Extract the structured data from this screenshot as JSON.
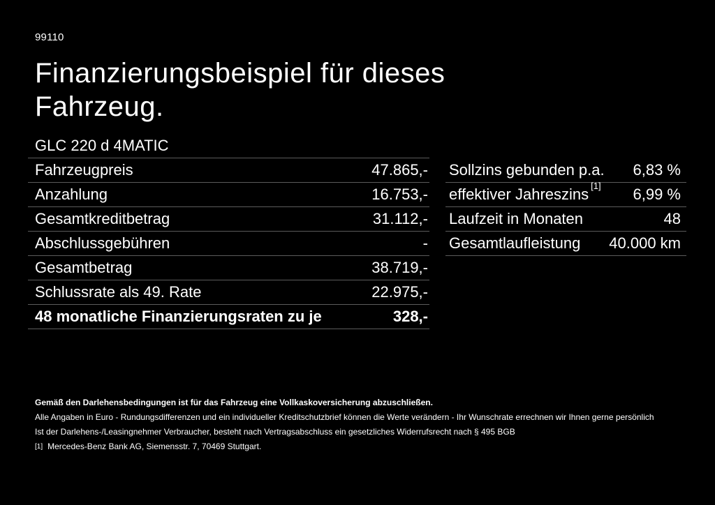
{
  "page": {
    "doc_number": "99110",
    "title_line1": "Finanzierungsbeispiel für dieses",
    "title_line2": "Fahrzeug.",
    "model": "GLC 220 d 4MATIC"
  },
  "colors": {
    "background": "#000000",
    "text": "#ffffff",
    "divider": "#5c5c5c"
  },
  "financing_table": {
    "rows": [
      {
        "label": "Fahrzeugpreis",
        "value": "47.865,-"
      },
      {
        "label": "Anzahlung",
        "value": "16.753,-"
      },
      {
        "label": "Gesamtkreditbetrag",
        "value": "31.112,-"
      },
      {
        "label": "Abschlussgebühren",
        "value": "-"
      },
      {
        "label": "Gesamtbetrag",
        "value": "38.719,-"
      },
      {
        "label": "Schlussrate als 49. Rate",
        "value": "22.975,-"
      },
      {
        "label": "48 monatliche Finanzierungsraten zu je",
        "value": "328,-"
      }
    ]
  },
  "conditions_table": {
    "rows": [
      {
        "label": "Sollzins gebunden p.a.",
        "sup": "",
        "value": "6,83 %"
      },
      {
        "label": "effektiver Jahreszins",
        "sup": "[1]",
        "value": "6,99 %"
      },
      {
        "label": "Laufzeit in Monaten",
        "sup": "",
        "value": "48"
      },
      {
        "label": "Gesamtlaufleistung",
        "sup": "",
        "value": "40.000 km"
      }
    ]
  },
  "footer": {
    "insurance_note": "Gemäß den Darlehensbedingungen ist für das Fahrzeug eine Vollkaskoversicherung abzuschließen.",
    "disclaimer_line1": "Alle Angaben in Euro - Rundungsdifferenzen und ein individueller Kreditschutzbrief können die Werte verändern - Ihr Wunschrate errechnen wir Ihnen gerne persönlich",
    "disclaimer_line2": "Ist der Darlehens-/Leasingnehmer Verbraucher, besteht nach Vertragsabschluss ein gesetzliches Widerrufsrecht nach § 495 BGB",
    "footnote_marker": "[1]",
    "footnote_text": "Mercedes-Benz Bank AG, Siemensstr. 7, 70469 Stuttgart."
  }
}
